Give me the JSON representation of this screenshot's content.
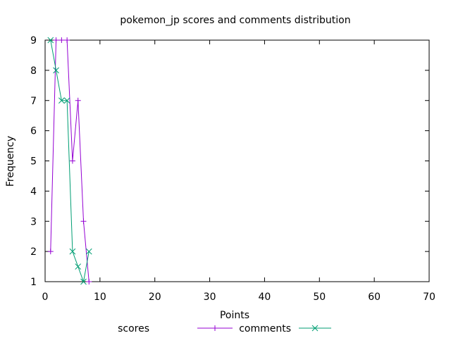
{
  "chart_data": {
    "type": "line",
    "title": "pokemon_jp scores and comments distribution",
    "xlabel": "Points",
    "ylabel": "Frequency",
    "xlim": [
      0,
      70
    ],
    "ylim": [
      1,
      9
    ],
    "xticks": [
      0,
      10,
      20,
      30,
      40,
      50,
      60,
      70
    ],
    "yticks": [
      1,
      2,
      3,
      4,
      5,
      6,
      7,
      8,
      9
    ],
    "grid": false,
    "legend_position": "bottom-center",
    "series": [
      {
        "name": "scores",
        "color": "#9400d3",
        "marker": "plus",
        "x": [
          1,
          2,
          3,
          4,
          5,
          6,
          7,
          8
        ],
        "y": [
          2,
          9,
          9,
          9,
          5,
          7,
          3,
          1
        ]
      },
      {
        "name": "comments",
        "color": "#009e73",
        "marker": "cross",
        "x": [
          1,
          2,
          3,
          4,
          5,
          6,
          7,
          8
        ],
        "y": [
          9,
          8,
          7,
          7,
          2,
          1.5,
          1,
          2
        ]
      }
    ]
  }
}
